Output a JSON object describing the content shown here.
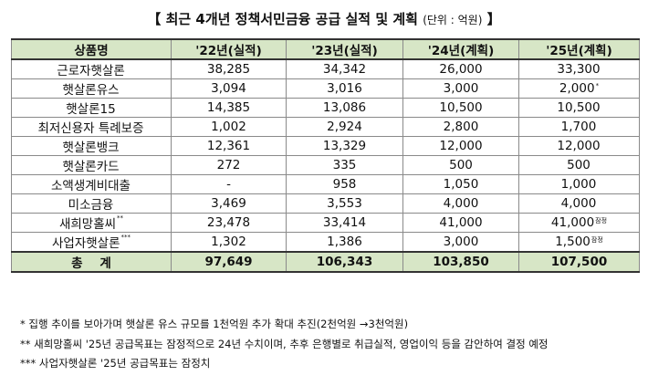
{
  "title": "【 최근 4개년 정책서민금융 공급 실적 및 계획",
  "unit": "(단위 : 억원)",
  "title_end": "】",
  "header": {
    "product": "상품명",
    "y22": "'22년(실적)",
    "y23": "'23년(실적)",
    "y24": "'24년(계획)",
    "y25": "'25년(계획)"
  },
  "rows": [
    {
      "name": "근로자햇살론",
      "name_mark": "",
      "y22": "38,285",
      "y23": "34,342",
      "y24": "26,000",
      "y25": "33,300",
      "y25_mark": ""
    },
    {
      "name": "햇살론유스",
      "name_mark": "",
      "y22": "3,094",
      "y23": "3,016",
      "y24": "3,000",
      "y25": "2,000",
      "y25_mark": "*"
    },
    {
      "name": "햇살론15",
      "name_mark": "",
      "y22": "14,385",
      "y23": "13,086",
      "y24": "10,500",
      "y25": "10,500",
      "y25_mark": ""
    },
    {
      "name": "최저신용자 특례보증",
      "name_mark": "",
      "y22": "1,002",
      "y23": "2,924",
      "y24": "2,800",
      "y25": "1,700",
      "y25_mark": ""
    },
    {
      "name": "햇살론뱅크",
      "name_mark": "",
      "y22": "12,361",
      "y23": "13,329",
      "y24": "12,000",
      "y25": "12,000",
      "y25_mark": ""
    },
    {
      "name": "햇살론카드",
      "name_mark": "",
      "y22": "272",
      "y23": "335",
      "y24": "500",
      "y25": "500",
      "y25_mark": ""
    },
    {
      "name": "소액생계비대출",
      "name_mark": "",
      "y22": "-",
      "y23": "958",
      "y24": "1,050",
      "y25": "1,000",
      "y25_mark": ""
    },
    {
      "name": "미소금융",
      "name_mark": "",
      "y22": "3,469",
      "y23": "3,553",
      "y24": "4,000",
      "y25": "4,000",
      "y25_mark": ""
    },
    {
      "name": "새희망홀씨",
      "name_mark": "**",
      "y22": "23,478",
      "y23": "33,414",
      "y24": "41,000",
      "y25": "41,000",
      "y25_mark": "잠정"
    },
    {
      "name": "사업자햇살론",
      "name_mark": "***",
      "y22": "1,302",
      "y23": "1,386",
      "y24": "3,000",
      "y25": "1,500",
      "y25_mark": "잠정"
    }
  ],
  "total": {
    "label": "총    계",
    "y22": "97,649",
    "y23": "106,343",
    "y24": "103,850",
    "y25": "107,500"
  },
  "notes": [
    "* 집행 추이를 보아가며 햇살론 유스 규모를 1천억원 추가 확대 추진(2천억원 →3천억원)",
    "** 새희망홀씨 '25년 공급목표는 잠정적으로 24년 수치이며, 추후 은행별로 취급실적, 영업이익 등을 감안하여 결정 예정",
    "*** 사업자햇살론 '25년 공급목표는 잠정치"
  ]
}
